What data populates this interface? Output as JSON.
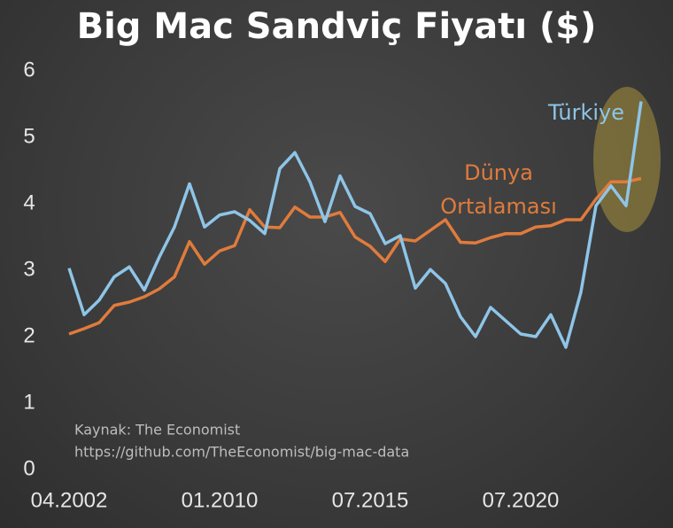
{
  "chart_data": {
    "type": "line",
    "title": "Big Mac Sandviç Fiyatı ($)",
    "categories": [
      "04.2002",
      null,
      null,
      null,
      null,
      null,
      null,
      null,
      null,
      null,
      "01.2010",
      null,
      null,
      null,
      null,
      null,
      null,
      null,
      null,
      null,
      "07.2015",
      null,
      null,
      null,
      null,
      null,
      null,
      null,
      null,
      null,
      "07.2020",
      null,
      null,
      null,
      null,
      null,
      null,
      null,
      null
    ],
    "series": [
      {
        "name": "Türkiye",
        "color": "#8ec5e8",
        "values": [
          3.03,
          2.33,
          2.55,
          2.9,
          3.05,
          2.7,
          3.2,
          3.65,
          4.3,
          3.65,
          3.83,
          3.88,
          3.75,
          3.55,
          4.53,
          4.77,
          4.33,
          3.73,
          4.42,
          3.96,
          3.85,
          3.4,
          3.52,
          2.73,
          3.01,
          2.8,
          2.3,
          2.0,
          2.44,
          2.24,
          2.04,
          2.0,
          2.33,
          1.84,
          2.67,
          3.97,
          4.27,
          3.97,
          5.54
        ]
      },
      {
        "name": "Dünya Ortalaması",
        "color": "#e07b3c",
        "values": [
          2.04,
          2.12,
          2.21,
          2.47,
          2.52,
          2.6,
          2.72,
          2.9,
          3.43,
          3.09,
          3.29,
          3.37,
          3.91,
          3.65,
          3.64,
          3.95,
          3.8,
          3.8,
          3.87,
          3.5,
          3.36,
          3.13,
          3.47,
          3.44,
          3.6,
          3.76,
          3.42,
          3.41,
          3.49,
          3.55,
          3.55,
          3.65,
          3.67,
          3.76,
          3.76,
          4.07,
          4.33,
          4.33,
          4.38
        ]
      }
    ],
    "ylim": [
      0,
      6
    ],
    "yticks": [
      0,
      1,
      2,
      3,
      4,
      5,
      6
    ],
    "grid": false,
    "notes": [
      "Kaynak: The Economist",
      "https://github.com/TheEconomist/big-mac-data"
    ]
  }
}
